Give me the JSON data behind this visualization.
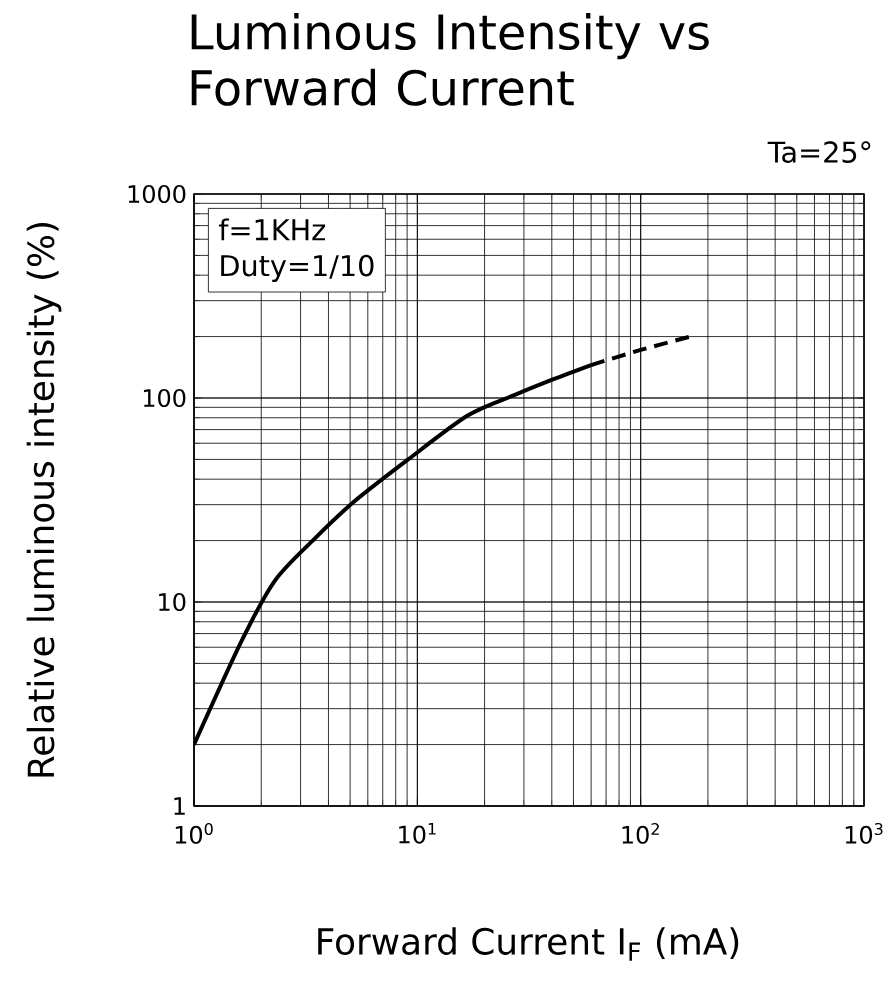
{
  "chart_data": {
    "type": "line",
    "title": "Luminous Intensity vs Forward Current",
    "xlabel": "Forward Current   I$_{F}$ (mA)",
    "ylabel": "Relative luminous intensity (%)",
    "annotations": [
      "Ta=25°",
      "f=1KHz",
      "Duty=1/10"
    ],
    "log": "xy",
    "grid": true,
    "marker": "none",
    "xlim": [
      1,
      1000
    ],
    "ylim": [
      1,
      1000
    ],
    "xticks": [
      {
        "value": 1,
        "label": "10$^{0}$"
      },
      {
        "value": 10,
        "label": "10$^{1}$"
      },
      {
        "value": 100,
        "label": "10$^{2}$"
      },
      {
        "value": 1000,
        "label": "10$^{3}$"
      }
    ],
    "yticks": [
      1,
      10,
      100,
      1000
    ],
    "series": [
      {
        "color": "#000000",
        "line_style": "solid",
        "x": [
          1,
          1.64,
          2.3,
          3.4,
          5.2,
          9.1,
          16.8,
          27,
          41,
          60
        ],
        "values": [
          2,
          6.5,
          12.7,
          20,
          31,
          50,
          82,
          103,
          124,
          145
        ]
      },
      {
        "color": "#000000",
        "line_style": "dashed",
        "x": [
          60,
          100,
          167
        ],
        "values": [
          145,
          172,
          200
        ]
      }
    ]
  }
}
